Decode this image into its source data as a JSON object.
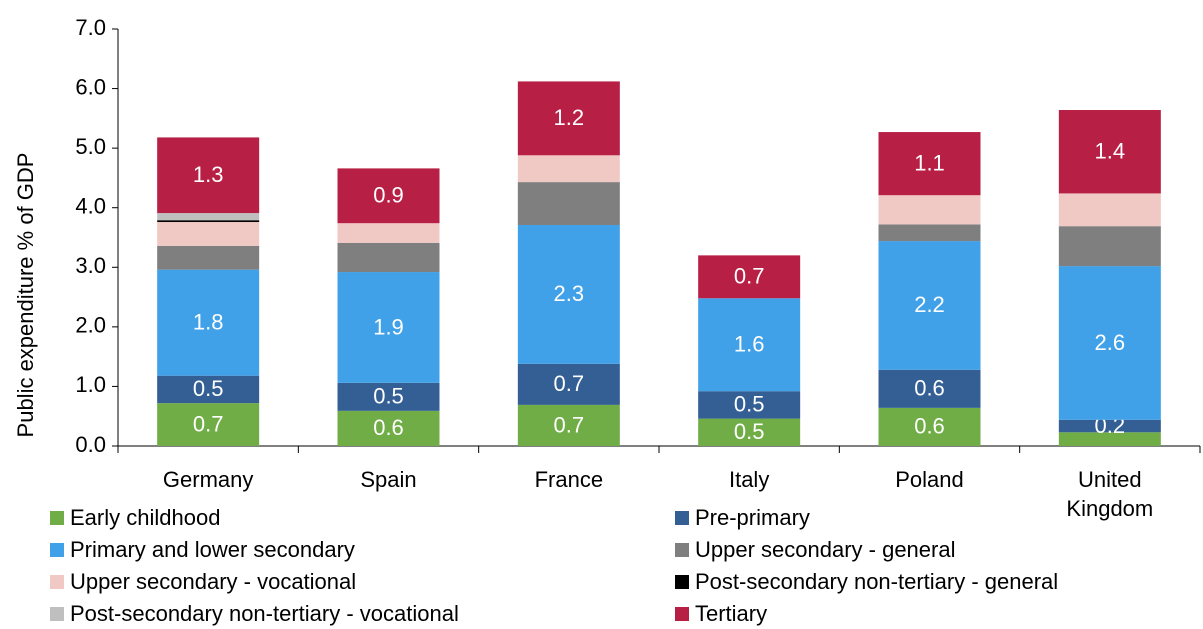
{
  "chart_data": {
    "type": "stacked_bar",
    "y_label": "Public expenditure % of GDP",
    "categories": [
      "Germany",
      "Spain",
      "France",
      "Italy",
      "Poland",
      "United Kingdom"
    ],
    "ylim": [
      0,
      7
    ],
    "yticks": [
      {
        "value": 0,
        "label": "0.0"
      },
      {
        "value": 1,
        "label": "1.0"
      },
      {
        "value": 2,
        "label": "2.0"
      },
      {
        "value": 3,
        "label": "3.0"
      },
      {
        "value": 4,
        "label": "4.0"
      },
      {
        "value": 5,
        "label": "5.0"
      },
      {
        "value": 6,
        "label": "6.0"
      },
      {
        "value": 7,
        "label": "7.0"
      }
    ],
    "series": [
      {
        "name": "Early childhood",
        "color": "#70ad47",
        "values": [
          0.72,
          0.59,
          0.69,
          0.46,
          0.64,
          0.23
        ],
        "value_labels": [
          "0.7",
          "0.6",
          "0.7",
          "0.5",
          "0.6",
          null
        ]
      },
      {
        "name": "Pre-primary",
        "color": "#345f94",
        "values": [
          0.46,
          0.47,
          0.69,
          0.46,
          0.64,
          0.21
        ],
        "value_labels": [
          "0.5",
          "0.5",
          "0.7",
          "0.5",
          "0.6",
          "0.2"
        ]
      },
      {
        "name": "Primary and lower secondary",
        "color": "#41a1e8",
        "values": [
          1.78,
          1.86,
          2.33,
          1.56,
          2.16,
          2.58
        ],
        "value_labels": [
          "1.8",
          "1.9",
          "2.3",
          "1.6",
          "2.2",
          "2.6"
        ]
      },
      {
        "name": "Upper secondary - general",
        "color": "#7f7f7f",
        "values": [
          0.4,
          0.49,
          0.72,
          0,
          0.28,
          0.67
        ]
      },
      {
        "name": "Upper secondary - vocational",
        "color": "#f0c8c4",
        "values": [
          0.4,
          0.33,
          0.45,
          0,
          0.49,
          0.55
        ]
      },
      {
        "name": "Post-secondary non-tertiary - general",
        "color": "#000000",
        "values": [
          0.03,
          0,
          0,
          0,
          0,
          0
        ]
      },
      {
        "name": "Post-secondary non-tertiary - vocational",
        "color": "#bfbfbf",
        "values": [
          0.12,
          0,
          0,
          0,
          0,
          0
        ]
      },
      {
        "name": "Tertiary",
        "color": "#b81f45",
        "values": [
          1.27,
          0.92,
          1.24,
          0.72,
          1.06,
          1.4
        ],
        "value_labels": [
          "1.3",
          "0.9",
          "1.2",
          "0.7",
          "1.1",
          "1.4"
        ]
      }
    ]
  }
}
